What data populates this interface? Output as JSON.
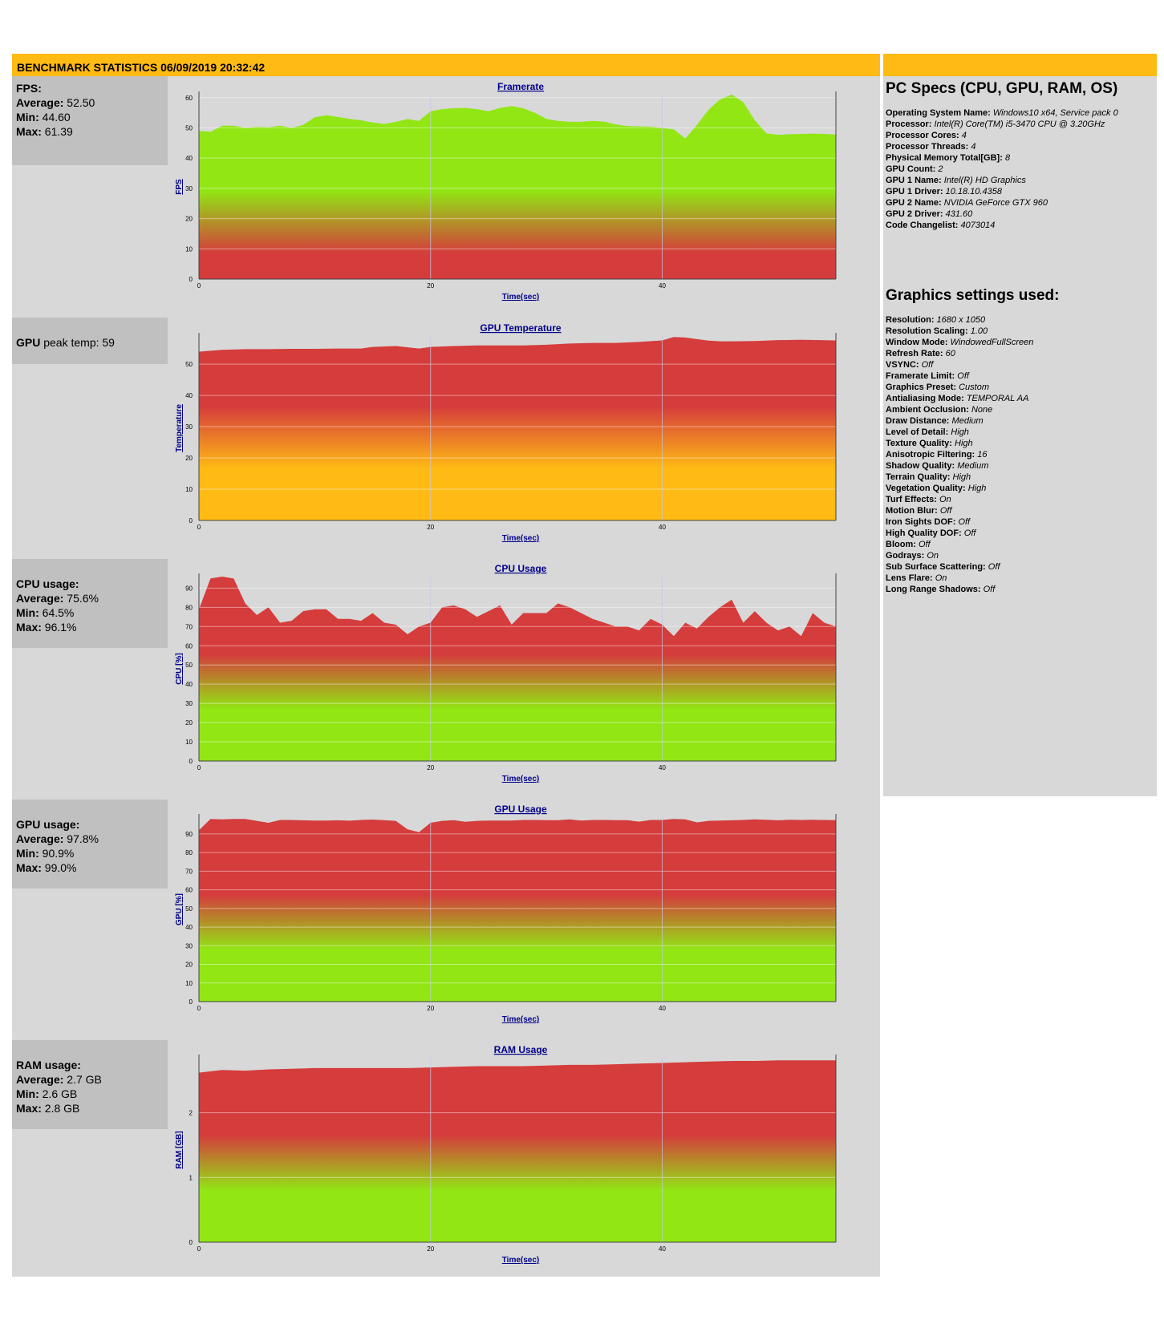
{
  "header": {
    "title": "BENCHMARK STATISTICS 06/09/2019 20:32:42"
  },
  "stats": {
    "fps": {
      "label": "FPS:",
      "avg_label": "Average:",
      "avg": "52.50",
      "min_label": "Min:",
      "min": "44.60",
      "max_label": "Max:",
      "max": "61.39"
    },
    "gpu_temp": {
      "label": "GPU",
      "text": "peak temp: 59"
    },
    "cpu": {
      "label": "CPU usage:",
      "avg_label": "Average:",
      "avg": "75.6%",
      "min_label": "Min:",
      "min": "64.5%",
      "max_label": "Max:",
      "max": "96.1%"
    },
    "gpu": {
      "label": "GPU usage:",
      "avg_label": "Average:",
      "avg": "97.8%",
      "min_label": "Min:",
      "min": "90.9%",
      "max_label": "Max:",
      "max": "99.0%"
    },
    "ram": {
      "label": "RAM usage:",
      "avg_label": "Average:",
      "avg": "2.7 GB",
      "min_label": "Min:",
      "min": "2.6 GB",
      "max_label": "Max:",
      "max": "2.8 GB"
    }
  },
  "pc_specs": {
    "title": "PC Specs (CPU, GPU, RAM, OS)",
    "items": [
      {
        "label": "Operating System Name:",
        "value": "Windows10 x64, Service pack 0"
      },
      {
        "label": "Processor:",
        "value": "Intel(R) Core(TM) i5-3470 CPU @ 3.20GHz"
      },
      {
        "label": "Processor Cores:",
        "value": "4"
      },
      {
        "label": "Processor Threads:",
        "value": "4"
      },
      {
        "label": "Physical Memory Total[GB]:",
        "value": "8"
      },
      {
        "label": "GPU Count:",
        "value": "2"
      },
      {
        "label": "GPU 1 Name:",
        "value": "Intel(R) HD Graphics"
      },
      {
        "label": "GPU 1 Driver:",
        "value": "10.18.10.4358"
      },
      {
        "label": "GPU 2 Name:",
        "value": "NVIDIA GeForce GTX 960"
      },
      {
        "label": "GPU 2 Driver:",
        "value": "431.60"
      },
      {
        "label": "Code Changelist:",
        "value": "4073014"
      }
    ]
  },
  "graphics_settings": {
    "title": "Graphics settings used:",
    "items": [
      {
        "label": "Resolution:",
        "value": "1680 x 1050"
      },
      {
        "label": "Resolution Scaling:",
        "value": "1.00"
      },
      {
        "label": "Window Mode:",
        "value": "WindowedFullScreen"
      },
      {
        "label": "Refresh Rate:",
        "value": "60"
      },
      {
        "label": "VSYNC:",
        "value": "Off"
      },
      {
        "label": "Framerate Limit:",
        "value": "Off"
      },
      {
        "label": "Graphics Preset:",
        "value": "Custom"
      },
      {
        "label": "Antialiasing Mode:",
        "value": "TEMPORAL AA"
      },
      {
        "label": "Ambient Occlusion:",
        "value": "None"
      },
      {
        "label": "Draw Distance:",
        "value": "Medium"
      },
      {
        "label": "Level of Detail:",
        "value": "High"
      },
      {
        "label": "Texture Quality:",
        "value": "High"
      },
      {
        "label": "Anisotropic Filtering:",
        "value": "16"
      },
      {
        "label": "Shadow Quality:",
        "value": "Medium"
      },
      {
        "label": "Terrain Quality:",
        "value": "High"
      },
      {
        "label": "Vegetation Quality:",
        "value": "High"
      },
      {
        "label": "Turf Effects:",
        "value": "On"
      },
      {
        "label": "Motion Blur:",
        "value": "Off"
      },
      {
        "label": "Iron Sights DOF:",
        "value": "Off"
      },
      {
        "label": "High Quality DOF:",
        "value": "Off"
      },
      {
        "label": "Bloom:",
        "value": "Off"
      },
      {
        "label": "Godrays:",
        "value": "On"
      },
      {
        "label": "Sub Surface Scattering:",
        "value": "Off"
      },
      {
        "label": "Lens Flare:",
        "value": "On"
      },
      {
        "label": "Long Range Shadows:",
        "value": "Off"
      }
    ]
  },
  "colors": {
    "header": "#ffba14",
    "panel": "#d8d8d8",
    "stat_box": "#c0c0c0",
    "red": "#d53c3c",
    "orange": "#ffba14",
    "green": "#91e614"
  },
  "chart_data": [
    {
      "id": "framerate",
      "type": "area",
      "title": "Framerate",
      "xlabel": "Time(sec)",
      "ylabel": "FPS",
      "xlim": [
        0,
        55
      ],
      "ylim": [
        0,
        61
      ],
      "yticks": [
        0,
        10,
        20,
        30,
        40,
        50,
        60
      ],
      "xticks": [
        0,
        20,
        40
      ],
      "x": [
        0,
        1,
        2,
        3,
        4,
        5,
        6,
        7,
        8,
        9,
        10,
        11,
        12,
        13,
        14,
        15,
        16,
        17,
        18,
        19,
        20,
        21,
        22,
        23,
        24,
        25,
        26,
        27,
        28,
        29,
        30,
        31,
        32,
        33,
        34,
        35,
        36,
        37,
        38,
        39,
        40,
        41,
        42,
        43,
        44,
        45,
        46,
        47,
        48,
        49,
        50,
        51,
        52,
        53,
        54,
        55
      ],
      "values": [
        49,
        48.7,
        50.7,
        50.7,
        50,
        50.3,
        50.2,
        50.7,
        50,
        51,
        53.5,
        54.2,
        53.6,
        53,
        52.5,
        51.8,
        51.3,
        52,
        52.9,
        52.3,
        55.5,
        56.2,
        56.5,
        56.6,
        56.2,
        55.5,
        56.6,
        57.2,
        56.5,
        55,
        53,
        52.3,
        52,
        52,
        52.3,
        52.1,
        51.1,
        50.6,
        50.5,
        50.4,
        50,
        49.5,
        46.5,
        51,
        56,
        59.4,
        61,
        58.5,
        52.5,
        48.2,
        47.7,
        47.9,
        48,
        48.1,
        48,
        47.8
      ],
      "gradient": "fps"
    },
    {
      "id": "gpu_temperature",
      "type": "area",
      "title": "GPU Temperature",
      "xlabel": "Time(sec)",
      "ylabel": "Temperature",
      "xlim": [
        0,
        55
      ],
      "ylim": [
        0,
        59
      ],
      "yticks": [
        0,
        10,
        20,
        30,
        40,
        50
      ],
      "xticks": [
        0,
        20,
        40
      ],
      "x": [
        0,
        2,
        4,
        6,
        8,
        10,
        12,
        14,
        15,
        17,
        19,
        20,
        22,
        24,
        26,
        28,
        30,
        32,
        34,
        36,
        38,
        40,
        41,
        42,
        43,
        44,
        45,
        46,
        48,
        50,
        52,
        55
      ],
      "values": [
        54,
        54.6,
        54.8,
        54.8,
        54.9,
        54.9,
        55,
        55,
        55.5,
        55.8,
        55,
        55.5,
        55.8,
        56,
        56,
        56,
        56.2,
        56.6,
        56.8,
        56.8,
        57.1,
        57.6,
        58.7,
        58.5,
        58,
        57.5,
        57.3,
        57.3,
        57.4,
        57.7,
        57.8,
        57.6
      ],
      "gradient": "temp"
    },
    {
      "id": "cpu_usage",
      "type": "area",
      "title": "CPU Usage",
      "xlabel": "Time(sec)",
      "ylabel": "CPU [%]",
      "xlim": [
        0,
        55
      ],
      "ylim": [
        0,
        96
      ],
      "yticks": [
        0,
        10,
        20,
        30,
        40,
        50,
        60,
        70,
        80,
        90
      ],
      "xticks": [
        0,
        20,
        40
      ],
      "x": [
        0,
        1,
        2,
        3,
        4,
        5,
        6,
        7,
        8,
        9,
        10,
        11,
        12,
        13,
        14,
        15,
        16,
        17,
        18,
        19,
        20,
        21,
        22,
        23,
        24,
        25,
        26,
        27,
        28,
        29,
        30,
        31,
        32,
        33,
        34,
        35,
        36,
        37,
        38,
        39,
        40,
        41,
        42,
        43,
        44,
        45,
        46,
        47,
        48,
        49,
        50,
        51,
        52,
        53,
        54,
        55
      ],
      "values": [
        79,
        95,
        96,
        95,
        82,
        76,
        80,
        72,
        73,
        78,
        79,
        79,
        74,
        74,
        73,
        77,
        72,
        71,
        66,
        70,
        72,
        80,
        81,
        79,
        75,
        78,
        81,
        71,
        77,
        77,
        77,
        82,
        80,
        77,
        74,
        72,
        70,
        70,
        68,
        74,
        71,
        65,
        72,
        69,
        75,
        80,
        84,
        72,
        78,
        72,
        68,
        70,
        65,
        77,
        72,
        70
      ],
      "gradient": "usage"
    },
    {
      "id": "gpu_usage",
      "type": "area",
      "title": "GPU Usage",
      "xlabel": "Time(sec)",
      "ylabel": "GPU [%]",
      "xlim": [
        0,
        55
      ],
      "ylim": [
        0,
        99
      ],
      "yticks": [
        0,
        10,
        20,
        30,
        40,
        50,
        60,
        70,
        80,
        90
      ],
      "xticks": [
        0,
        20,
        40
      ],
      "x": [
        0,
        1,
        2,
        3,
        4,
        5,
        6,
        7,
        8,
        9,
        10,
        11,
        12,
        13,
        14,
        15,
        16,
        17,
        18,
        19,
        20,
        21,
        22,
        23,
        24,
        25,
        26,
        27,
        28,
        29,
        30,
        31,
        32,
        33,
        34,
        35,
        36,
        37,
        38,
        39,
        40,
        41,
        42,
        43,
        44,
        45,
        46,
        47,
        48,
        49,
        50,
        51,
        52,
        53,
        54,
        55
      ],
      "values": [
        92,
        98,
        97.8,
        98,
        98,
        97,
        96,
        97.5,
        97.5,
        97.3,
        97.2,
        97.2,
        97.3,
        97.1,
        97.5,
        97.7,
        97.4,
        97,
        92.5,
        90.9,
        96,
        97,
        97.4,
        96.5,
        97,
        97.2,
        97.2,
        97.2,
        97.5,
        97.5,
        97.4,
        97.4,
        97.8,
        97.2,
        97.5,
        97.5,
        97.4,
        97.4,
        96.6,
        97.5,
        97.5,
        98,
        97.8,
        96.2,
        97,
        97.2,
        97.3,
        97.5,
        97.8,
        97.6,
        97.3,
        97.6,
        97.5,
        97.6,
        97.5,
        97.4
      ],
      "gradient": "usage"
    },
    {
      "id": "ram_usage",
      "type": "area",
      "title": "RAM Usage",
      "xlabel": "Time(sec)",
      "ylabel": "RAM [GB]",
      "xlim": [
        0,
        55
      ],
      "ylim": [
        0,
        2.85
      ],
      "yticks": [
        0,
        1,
        2
      ],
      "xticks": [
        0,
        20,
        40
      ],
      "x": [
        0,
        2,
        4,
        6,
        8,
        10,
        12,
        14,
        16,
        18,
        20,
        22,
        24,
        26,
        28,
        30,
        32,
        34,
        36,
        38,
        40,
        42,
        44,
        46,
        48,
        50,
        52,
        55
      ],
      "values": [
        2.62,
        2.66,
        2.65,
        2.67,
        2.68,
        2.69,
        2.69,
        2.69,
        2.69,
        2.69,
        2.7,
        2.71,
        2.72,
        2.72,
        2.72,
        2.73,
        2.74,
        2.74,
        2.75,
        2.76,
        2.77,
        2.78,
        2.79,
        2.8,
        2.8,
        2.81,
        2.81,
        2.81
      ],
      "gradient": "usage"
    }
  ]
}
